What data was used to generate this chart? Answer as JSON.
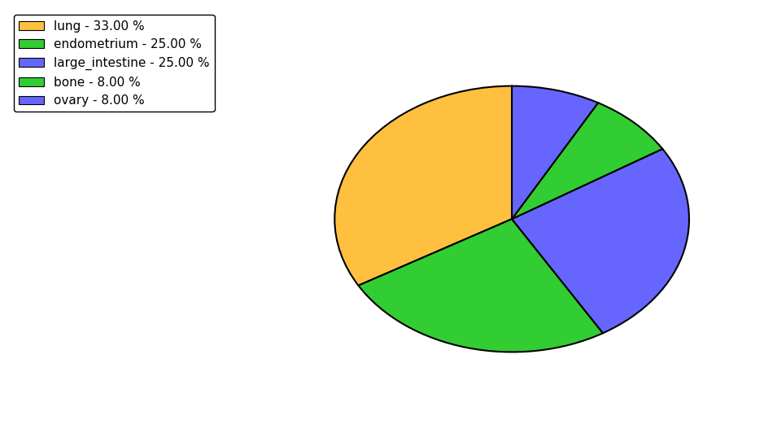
{
  "labels": [
    "lung",
    "endometrium",
    "large_intestine",
    "bone",
    "ovary"
  ],
  "values": [
    33.0,
    25.0,
    25.0,
    8.0,
    8.0
  ],
  "colors": [
    "#FFC040",
    "#32CD32",
    "#6666FF",
    "#32CD32",
    "#6666FF"
  ],
  "legend_labels": [
    "lung - 33.00 %",
    "endometrium - 25.00 %",
    "large_intestine - 25.00 %",
    "bone - 8.00 %",
    "ovary - 8.00 %"
  ],
  "legend_colors": [
    "#FFC040",
    "#32CD32",
    "#6666FF",
    "#32CD32",
    "#6666FF"
  ],
  "startangle": 90,
  "figsize": [
    9.39,
    5.38
  ],
  "dpi": 100
}
